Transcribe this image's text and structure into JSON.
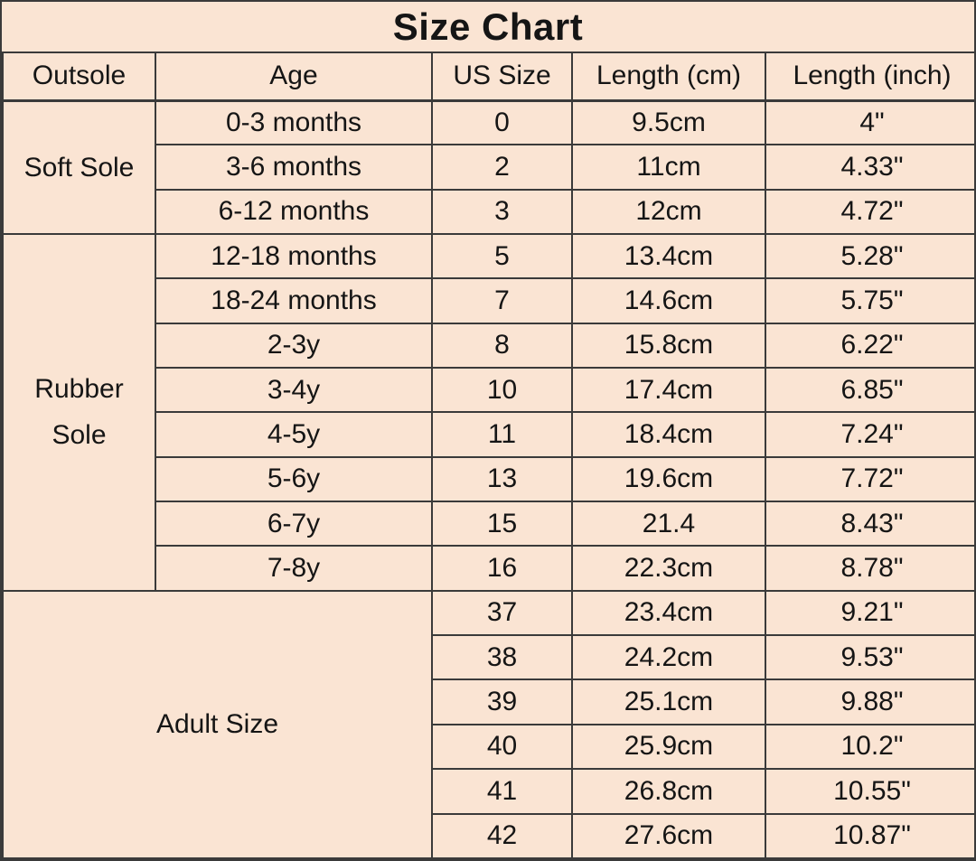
{
  "title": "Size Chart",
  "colors": {
    "background": "#FAE4D3",
    "border": "#3A3A3A",
    "text": "#151515"
  },
  "table": {
    "headers": [
      "Outsole",
      "Age",
      "US Size",
      "Length (cm)",
      "Length (inch)"
    ],
    "sections": [
      {
        "outsole": "Soft Sole",
        "merged": false,
        "rows": [
          {
            "age": "0-3 months",
            "us": "0",
            "cm": "9.5cm",
            "inch": "4\""
          },
          {
            "age": "3-6 months",
            "us": "2",
            "cm": "11cm",
            "inch": "4.33\""
          },
          {
            "age": "6-12 months",
            "us": "3",
            "cm": "12cm",
            "inch": "4.72\""
          }
        ]
      },
      {
        "outsole": "Rubber Sole",
        "merged": false,
        "rows": [
          {
            "age": "12-18 months",
            "us": "5",
            "cm": "13.4cm",
            "inch": "5.28\""
          },
          {
            "age": "18-24 months",
            "us": "7",
            "cm": "14.6cm",
            "inch": "5.75\""
          },
          {
            "age": "2-3y",
            "us": "8",
            "cm": "15.8cm",
            "inch": "6.22\""
          },
          {
            "age": "3-4y",
            "us": "10",
            "cm": "17.4cm",
            "inch": "6.85\""
          },
          {
            "age": "4-5y",
            "us": "11",
            "cm": "18.4cm",
            "inch": "7.24\""
          },
          {
            "age": "5-6y",
            "us": "13",
            "cm": "19.6cm",
            "inch": "7.72\""
          },
          {
            "age": "6-7y",
            "us": "15",
            "cm": "21.4",
            "inch": "8.43\""
          },
          {
            "age": "7-8y",
            "us": "16",
            "cm": "22.3cm",
            "inch": "8.78\""
          }
        ]
      },
      {
        "outsole": "Adult Size",
        "merged": true,
        "rows": [
          {
            "age": "",
            "us": "37",
            "cm": "23.4cm",
            "inch": "9.21\""
          },
          {
            "age": "",
            "us": "38",
            "cm": "24.2cm",
            "inch": "9.53\""
          },
          {
            "age": "",
            "us": "39",
            "cm": "25.1cm",
            "inch": "9.88\""
          },
          {
            "age": "",
            "us": "40",
            "cm": "25.9cm",
            "inch": "10.2\""
          },
          {
            "age": "",
            "us": "41",
            "cm": "26.8cm",
            "inch": "10.55\""
          },
          {
            "age": "",
            "us": "42",
            "cm": "27.6cm",
            "inch": "10.87\""
          }
        ]
      }
    ]
  },
  "chart_data": {
    "type": "table",
    "title": "Size Chart",
    "columns": [
      "Outsole",
      "Age",
      "US Size",
      "Length (cm)",
      "Length (inch)"
    ],
    "rows": [
      [
        "Soft Sole",
        "0-3 months",
        "0",
        "9.5cm",
        "4\""
      ],
      [
        "Soft Sole",
        "3-6 months",
        "2",
        "11cm",
        "4.33\""
      ],
      [
        "Soft Sole",
        "6-12 months",
        "3",
        "12cm",
        "4.72\""
      ],
      [
        "Rubber Sole",
        "12-18 months",
        "5",
        "13.4cm",
        "5.28\""
      ],
      [
        "Rubber Sole",
        "18-24 months",
        "7",
        "14.6cm",
        "5.75\""
      ],
      [
        "Rubber Sole",
        "2-3y",
        "8",
        "15.8cm",
        "6.22\""
      ],
      [
        "Rubber Sole",
        "3-4y",
        "10",
        "17.4cm",
        "6.85\""
      ],
      [
        "Rubber Sole",
        "4-5y",
        "11",
        "18.4cm",
        "7.24\""
      ],
      [
        "Rubber Sole",
        "5-6y",
        "13",
        "19.6cm",
        "7.72\""
      ],
      [
        "Rubber Sole",
        "6-7y",
        "15",
        "21.4",
        "8.43\""
      ],
      [
        "Rubber Sole",
        "7-8y",
        "16",
        "22.3cm",
        "8.78\""
      ],
      [
        "Adult Size",
        "",
        "37",
        "23.4cm",
        "9.21\""
      ],
      [
        "Adult Size",
        "",
        "38",
        "24.2cm",
        "9.53\""
      ],
      [
        "Adult Size",
        "",
        "39",
        "25.1cm",
        "9.88\""
      ],
      [
        "Adult Size",
        "",
        "40",
        "25.9cm",
        "10.2\""
      ],
      [
        "Adult Size",
        "",
        "41",
        "26.8cm",
        "10.55\""
      ],
      [
        "Adult Size",
        "",
        "42",
        "27.6cm",
        "10.87\""
      ]
    ]
  }
}
